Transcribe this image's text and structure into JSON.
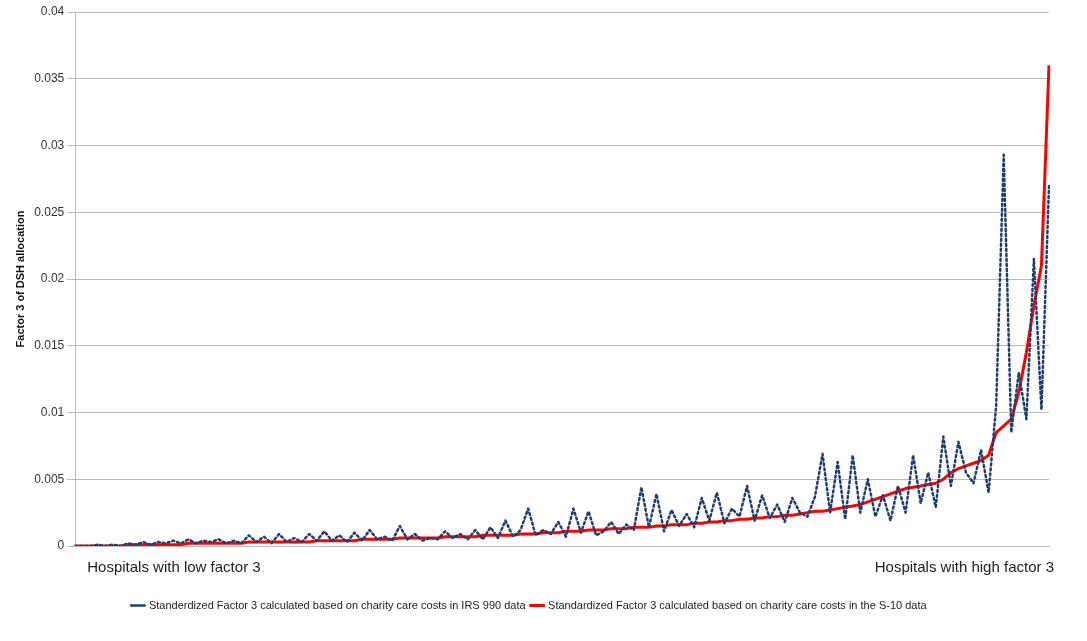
{
  "chart_data": {
    "type": "line",
    "ylabel": "Factor 3 of DSH allocation",
    "annotations": [
      "Hospitals with low factor 3",
      "Hospitals with high factor 3"
    ],
    "categories": [
      null,
      null,
      null,
      null,
      null,
      null,
      null,
      null,
      null,
      null,
      null,
      null,
      null,
      null,
      null,
      null,
      null,
      null,
      null,
      null,
      null,
      null,
      null,
      null,
      null,
      null,
      null,
      null,
      null,
      null,
      null,
      null,
      null,
      null,
      null,
      null,
      null,
      null,
      null,
      null,
      null,
      null,
      null,
      null,
      null,
      null,
      null,
      null,
      null,
      null,
      null,
      null,
      null,
      null,
      null,
      null,
      null,
      null,
      null,
      null,
      null,
      null,
      null,
      null,
      null,
      null,
      null,
      null,
      null,
      null,
      null,
      null,
      null,
      null,
      null,
      null,
      null,
      null,
      null,
      null,
      null,
      null,
      null,
      null,
      null,
      null,
      null,
      null,
      null,
      null,
      null,
      null,
      null,
      null,
      null,
      null,
      null,
      null,
      null,
      null,
      null,
      null,
      null,
      null,
      null,
      null,
      null,
      null,
      null,
      null,
      null,
      null,
      null,
      null,
      null,
      null,
      null,
      null,
      null,
      null,
      null,
      null,
      null,
      null,
      null,
      null,
      null,
      null,
      null,
      null
    ],
    "series": [
      {
        "name": "Standerdized Factor 3 calculated based on charity care costs in IRS 990 data",
        "color": "#1f3f73",
        "line_style": "dotted",
        "values": [
          0,
          0,
          0,
          0.0001,
          0,
          0.0001,
          0,
          0.0002,
          0.0001,
          0.0003,
          0.0001,
          0.0003,
          0.0002,
          0.0004,
          0.0002,
          0.0005,
          0.0002,
          0.0004,
          0.0003,
          0.0005,
          0.0002,
          0.0004,
          0.0002,
          0.0008,
          0.0003,
          0.0007,
          0.0002,
          0.0009,
          0.0003,
          0.0006,
          0.0003,
          0.0009,
          0.0004,
          0.0011,
          0.0004,
          0.0008,
          0.0003,
          0.001,
          0.0004,
          0.0012,
          0.0005,
          0.0007,
          0.0004,
          0.0015,
          0.0005,
          0.0009,
          0.0004,
          0.0006,
          0.0005,
          0.0011,
          0.0006,
          0.0009,
          0.0005,
          0.0012,
          0.0005,
          0.0014,
          0.0006,
          0.0019,
          0.0007,
          0.0012,
          0.0028,
          0.0008,
          0.0012,
          0.0009,
          0.0018,
          0.0007,
          0.0028,
          0.001,
          0.0026,
          0.0008,
          0.0011,
          0.0018,
          0.0009,
          0.0016,
          0.0012,
          0.0044,
          0.0014,
          0.0039,
          0.0011,
          0.0027,
          0.0015,
          0.0024,
          0.0014,
          0.0036,
          0.0019,
          0.004,
          0.0017,
          0.0028,
          0.0022,
          0.0045,
          0.0019,
          0.0038,
          0.0021,
          0.0031,
          0.0018,
          0.0036,
          0.0025,
          0.0022,
          0.0037,
          0.0069,
          0.0025,
          0.0063,
          0.002,
          0.0068,
          0.0025,
          0.005,
          0.0022,
          0.0038,
          0.0019,
          0.0045,
          0.0025,
          0.0068,
          0.0032,
          0.0055,
          0.0029,
          0.0082,
          0.0045,
          0.0078,
          0.0055,
          0.0047,
          0.0072,
          0.004,
          0.0105,
          0.0293,
          0.0085,
          0.013,
          0.0095,
          0.0215,
          0.0102,
          0.027
        ]
      },
      {
        "name": "Standardized Factor 3 calculated based on charity care costs in the S-10 data",
        "color": "#ff0000",
        "line_style": "solid",
        "values": [
          0,
          0,
          0,
          0,
          0,
          0,
          0,
          0.0001,
          0.0001,
          0.0001,
          0.0001,
          0.0001,
          0.0001,
          0.0001,
          0.0001,
          0.0002,
          0.0002,
          0.0002,
          0.0002,
          0.0002,
          0.0002,
          0.0002,
          0.0002,
          0.0003,
          0.0003,
          0.0003,
          0.0003,
          0.0003,
          0.0003,
          0.0003,
          0.0003,
          0.0003,
          0.0004,
          0.0004,
          0.0004,
          0.0004,
          0.0004,
          0.0004,
          0.0005,
          0.0005,
          0.0005,
          0.0005,
          0.0005,
          0.0006,
          0.0006,
          0.0006,
          0.0006,
          0.0006,
          0.0006,
          0.0007,
          0.0007,
          0.0007,
          0.0007,
          0.0007,
          0.0008,
          0.0008,
          0.0008,
          0.0008,
          0.0008,
          0.0009,
          0.0009,
          0.0009,
          0.001,
          0.001,
          0.001,
          0.0011,
          0.0011,
          0.0011,
          0.0012,
          0.0012,
          0.0012,
          0.0013,
          0.0013,
          0.0013,
          0.0014,
          0.0014,
          0.0014,
          0.0015,
          0.0015,
          0.0016,
          0.0016,
          0.0016,
          0.0017,
          0.0017,
          0.0018,
          0.0018,
          0.0019,
          0.0019,
          0.002,
          0.002,
          0.0021,
          0.0021,
          0.0022,
          0.0022,
          0.0023,
          0.0023,
          0.0024,
          0.0025,
          0.0026,
          0.0026,
          0.0027,
          0.0028,
          0.0029,
          0.003,
          0.0031,
          0.0033,
          0.0035,
          0.0037,
          0.0039,
          0.0041,
          0.0043,
          0.0044,
          0.0045,
          0.0046,
          0.0047,
          0.005,
          0.0055,
          0.0058,
          0.006,
          0.0062,
          0.0064,
          0.0068,
          0.0085,
          0.009,
          0.0095,
          0.0115,
          0.0145,
          0.018,
          0.021,
          0.036
        ]
      }
    ],
    "ylim": [
      0,
      0.04
    ],
    "yticks": [
      0,
      0.005,
      0.01,
      0.015,
      0.02,
      0.025,
      0.03,
      0.035,
      0.04
    ],
    "grid": "y",
    "legend": "bottom",
    "marker": "none",
    "tick_labels": "y"
  }
}
